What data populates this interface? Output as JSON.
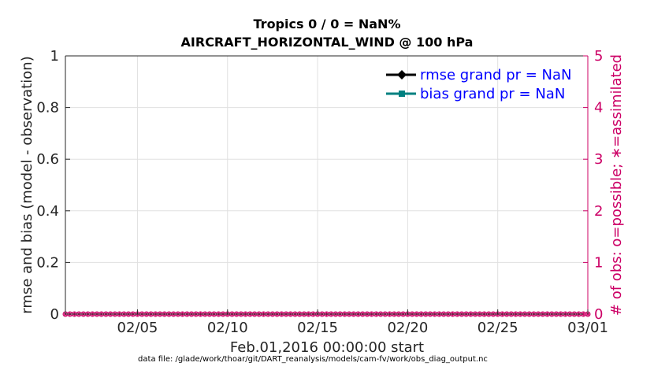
{
  "chart_data": {
    "type": "line",
    "title": "Tropics 0 / 0 = NaN%",
    "subtitle": "AIRCRAFT_HORIZONTAL_WIND @ 100 hPa",
    "ylabel": "rmse and bias (model - observation)",
    "y2label": "# of obs: o=possible; ∗=assimilated",
    "xlabel": "Feb.01,2016 00:00:00 start",
    "footer": "data file: /glade/work/thoar/git/DART_reanalysis/models/cam-fv/work/obs_diag_output.nc",
    "ylim": [
      0,
      1
    ],
    "y2lim": [
      0,
      5
    ],
    "xlim": [
      0,
      29
    ],
    "yticks": [
      "0",
      "0.2",
      "0.4",
      "0.6",
      "0.8",
      "1"
    ],
    "y2ticks": [
      "0",
      "1",
      "2",
      "3",
      "4",
      "5"
    ],
    "xticks": [
      {
        "value": 4,
        "label": "02/05"
      },
      {
        "value": 9,
        "label": "02/10"
      },
      {
        "value": 14,
        "label": "02/15"
      },
      {
        "value": 19,
        "label": "02/20"
      },
      {
        "value": 24,
        "label": "02/25"
      },
      {
        "value": 29,
        "label": "03/01"
      }
    ],
    "grid": true,
    "legend_position": "top-right",
    "series": [
      {
        "name": "rmse grand pr = NaN",
        "color": "#000000",
        "marker": "diamond",
        "values": []
      },
      {
        "name": "bias grand pr = NaN",
        "color": "#008080",
        "marker": "square",
        "values": []
      }
    ],
    "obs_counts": {
      "color": "#cc0066",
      "x_step_days": 0.25,
      "possible": 0,
      "assimilated": 0
    }
  }
}
